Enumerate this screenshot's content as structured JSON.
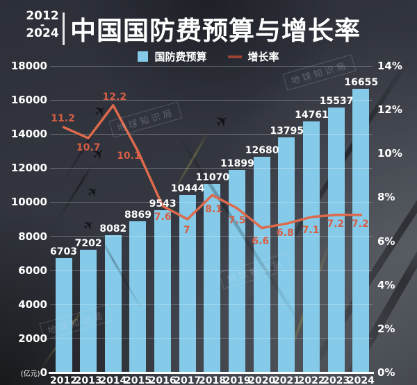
{
  "header": {
    "year_range": {
      "start": "2012",
      "separator": "-",
      "end": "2024"
    },
    "title": "中国国防费预算与增长率"
  },
  "legend": {
    "bar_label": "国防费预算",
    "line_label": "增长率",
    "bar_color": "#85cae8",
    "line_color": "#9e4136"
  },
  "watermark": "地球知识局",
  "icons": {
    "plane": "✈"
  },
  "chart_data": {
    "type": "bar+line",
    "title": "中国国防费预算与增长率",
    "subtitle": "2012-2024",
    "categories": [
      "2012",
      "2013",
      "2014",
      "2015",
      "2016",
      "2017",
      "2018",
      "2019",
      "2020",
      "2021",
      "2022",
      "2023",
      "2024"
    ],
    "series": [
      {
        "name": "国防费预算",
        "type": "bar",
        "axis": "left",
        "unit": "亿元",
        "color": "#85cae8",
        "values": [
          6703,
          7202,
          8082,
          8869,
          9543,
          10444,
          11070,
          11899,
          12680,
          13795,
          14761,
          15537,
          16655
        ]
      },
      {
        "name": "增长率",
        "type": "line",
        "axis": "right",
        "unit": "%",
        "color": "#dd6a4c",
        "values": [
          11.2,
          10.7,
          12.2,
          10.1,
          7.6,
          7,
          8.1,
          7.5,
          6.6,
          6.8,
          7.1,
          7.2,
          7.2
        ]
      }
    ],
    "left_axis": {
      "label": "(亿元)",
      "min": 0,
      "max": 18000,
      "step": 2000,
      "ticks": [
        "18000",
        "16000",
        "14000",
        "12000",
        "10000",
        "8000",
        "6000",
        "4000",
        "2000",
        "0"
      ]
    },
    "right_axis": {
      "min": 0,
      "max": 14,
      "step": 2,
      "suffix": "%",
      "ticks": [
        "14%",
        "12%",
        "10%",
        "8%",
        "6%",
        "4%",
        "2%",
        "0%"
      ]
    },
    "grid": true,
    "legend_position": "top"
  }
}
